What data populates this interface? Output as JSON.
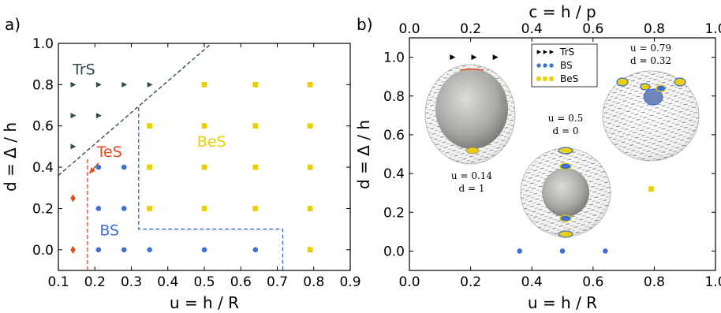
{
  "panel_labels": {
    "a": "a)",
    "b": "b)"
  },
  "colors": {
    "TrS": "#2f4f4f",
    "TeS": "#e8481d",
    "BS": "#3f6fd4",
    "BeS": "#e8cf0a",
    "boundary_TrS": "#2f4f4f",
    "boundary_TeS": "#e8481d",
    "boundary_BS": "#3f6fd4"
  },
  "chart_data": [
    {
      "type": "scatter",
      "xlabel": "u = h / R",
      "ylabel": "d = Δ / h",
      "xlim": [
        0.1,
        0.9
      ],
      "ylim": [
        -0.1,
        1.0
      ],
      "xticks": [
        "0.1",
        "0.2",
        "0.3",
        "0.4",
        "0.5",
        "0.6",
        "0.7",
        "0.8",
        "0.9"
      ],
      "yticks": [
        "0.0",
        "0.2",
        "0.4",
        "0.6",
        "0.8",
        "1.0"
      ],
      "series": [
        {
          "name": "TrS",
          "marker": "triangle-right",
          "points": [
            [
              0.14,
              0.8
            ],
            [
              0.21,
              0.8
            ],
            [
              0.28,
              0.8
            ],
            [
              0.35,
              0.8
            ],
            [
              0.14,
              0.65
            ],
            [
              0.21,
              0.65
            ],
            [
              0.14,
              0.5
            ]
          ]
        },
        {
          "name": "TeS",
          "marker": "diamond",
          "points": [
            [
              0.14,
              0.0
            ],
            [
              0.14,
              0.25
            ]
          ]
        },
        {
          "name": "BS",
          "marker": "circle",
          "points": [
            [
              0.21,
              0.0
            ],
            [
              0.28,
              0.0
            ],
            [
              0.35,
              0.0
            ],
            [
              0.5,
              0.0
            ],
            [
              0.64,
              0.0
            ],
            [
              0.21,
              0.2
            ],
            [
              0.28,
              0.2
            ],
            [
              0.21,
              0.4
            ],
            [
              0.28,
              0.4
            ]
          ]
        },
        {
          "name": "BeS",
          "marker": "square",
          "points": [
            [
              0.5,
              0.8
            ],
            [
              0.64,
              0.8
            ],
            [
              0.79,
              0.8
            ],
            [
              0.35,
              0.6
            ],
            [
              0.5,
              0.6
            ],
            [
              0.64,
              0.6
            ],
            [
              0.79,
              0.6
            ],
            [
              0.35,
              0.4
            ],
            [
              0.5,
              0.4
            ],
            [
              0.64,
              0.4
            ],
            [
              0.79,
              0.4
            ],
            [
              0.35,
              0.2
            ],
            [
              0.5,
              0.2
            ],
            [
              0.64,
              0.2
            ],
            [
              0.79,
              0.2
            ],
            [
              0.79,
              0.0
            ]
          ]
        }
      ],
      "boundaries": [
        {
          "name": "TrS",
          "style": "dashed",
          "points": [
            [
              0.1,
              0.36
            ],
            [
              0.52,
              1.0
            ]
          ]
        },
        {
          "name": "TeS",
          "style": "dashed",
          "points": [
            [
              0.18,
              -0.1
            ],
            [
              0.18,
              0.45
            ]
          ]
        },
        {
          "name": "BS",
          "style": "dashed",
          "points": [
            [
              0.32,
              0.69
            ],
            [
              0.32,
              0.1
            ],
            [
              0.715,
              0.1
            ],
            [
              0.715,
              -0.1
            ]
          ]
        }
      ],
      "region_labels": [
        {
          "text": "TrS",
          "x": 0.17,
          "y": 0.85,
          "color": "TrS"
        },
        {
          "text": "TeS",
          "x": 0.24,
          "y": 0.45,
          "color": "TeS"
        },
        {
          "text": "BeS",
          "x": 0.52,
          "y": 0.5,
          "color": "BeS"
        },
        {
          "text": "BS",
          "x": 0.24,
          "y": 0.07,
          "color": "BS"
        }
      ],
      "arrow": {
        "from": [
          0.21,
          0.42
        ],
        "to": [
          0.185,
          0.37
        ],
        "color": "TeS"
      }
    },
    {
      "type": "scatter",
      "xlabel": "u = h / R",
      "ylabel": "d = Δ / h",
      "top_xlabel": "c = h / p",
      "xlim": [
        0.0,
        1.0
      ],
      "ylim": [
        -0.1,
        1.1
      ],
      "xticks": [
        "0.0",
        "0.2",
        "0.4",
        "0.6",
        "0.8",
        "1.0"
      ],
      "top_xticks": [
        "0.0",
        "0.2",
        "0.4",
        "0.6",
        "0.8",
        "1.0"
      ],
      "yticks": [
        "0.0",
        "0.2",
        "0.4",
        "0.6",
        "0.8",
        "1.0"
      ],
      "legend": {
        "position": "top-center",
        "entries": [
          "TrS",
          "BS",
          "BeS"
        ]
      },
      "series": [
        {
          "name": "TrS",
          "marker": "triangle-right",
          "points": [
            [
              0.14,
              1.0
            ],
            [
              0.21,
              1.0
            ],
            [
              0.28,
              1.0
            ]
          ]
        },
        {
          "name": "BS",
          "marker": "circle",
          "points": [
            [
              0.36,
              0.0
            ],
            [
              0.5,
              0.0
            ],
            [
              0.64,
              0.0
            ]
          ]
        },
        {
          "name": "BeS",
          "marker": "square",
          "points": [
            [
              0.79,
              0.32
            ]
          ]
        }
      ],
      "insets": [
        {
          "u_label": "u = 0.14",
          "d_label": "d = 1"
        },
        {
          "u_label": "u = 0.5",
          "d_label": "d = 0"
        },
        {
          "u_label": "u = 0.79",
          "d_label": "d = 0.32"
        }
      ]
    }
  ]
}
